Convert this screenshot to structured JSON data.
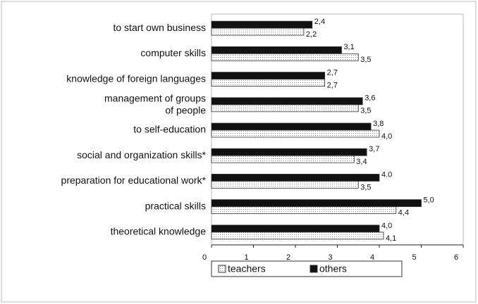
{
  "chart_data": {
    "type": "hbar",
    "categories": [
      "to start own business",
      "computer skills",
      "knowledge of foreign languages",
      "management of groups\nof people",
      "to self-education",
      "social and organization skills*",
      "preparation for educational work*",
      "practical skills",
      "theoretical knowledge"
    ],
    "series": [
      {
        "name": "teachers",
        "color": "#e6e6e6",
        "values": [
          2.2,
          3.5,
          2.7,
          3.5,
          4.0,
          3.4,
          3.5,
          4.4,
          4.1
        ],
        "value_labels": [
          "2,2",
          "3,5",
          "2,7",
          "3,5",
          "4,0",
          "3,4",
          "3,5",
          "4,4",
          "4,1"
        ]
      },
      {
        "name": "others",
        "color": "#111111",
        "values": [
          2.4,
          3.1,
          2.7,
          3.6,
          3.8,
          3.7,
          4.0,
          5.0,
          4.0
        ],
        "value_labels": [
          "2,4",
          "3,1",
          "2,7",
          "3,6",
          "3,8",
          "3,7",
          "4.0",
          "5,0",
          "4,0"
        ]
      }
    ],
    "xlim": [
      0,
      6
    ],
    "xticks": [
      0,
      1,
      2,
      3,
      4,
      5,
      6
    ],
    "legend": "bottom"
  }
}
